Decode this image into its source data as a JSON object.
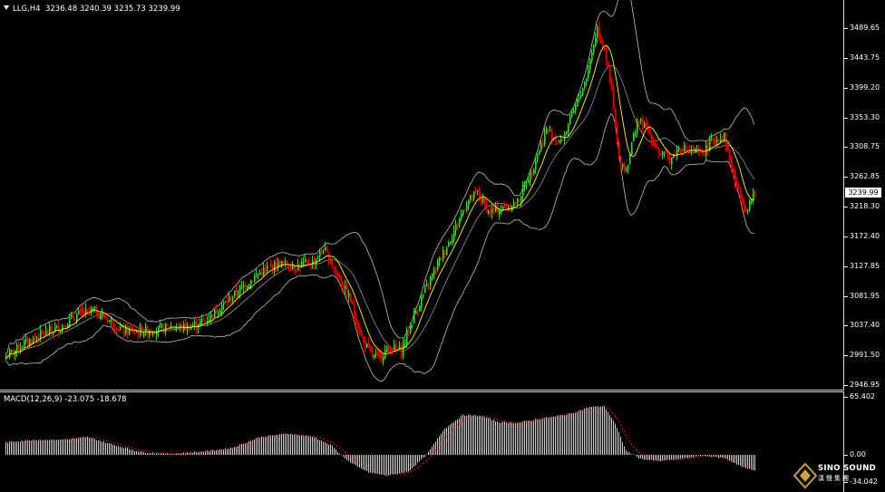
{
  "header": {
    "symbol_timeframe": "LLG,H4",
    "ohlc": "3236.48 3240.39 3235.73 3239.99"
  },
  "macd_header": {
    "label": "MACD(12,26,9) -23.075 -18.678"
  },
  "current_price": "3239.99",
  "logo": {
    "name": "SINO SOUND",
    "sub": "漢聲集團"
  },
  "colors": {
    "background": "#000000",
    "bull_candle": "#3cd23c",
    "bear_candle": "#e00000",
    "moving_average": "#ffff00",
    "bollinger": "#c0c0c0",
    "macd_signal": "#ff2020",
    "macd_hist": "#d0d0d0"
  },
  "price_axis": [
    "3489.65",
    "3443.75",
    "3399.20",
    "3353.30",
    "3308.75",
    "3262.85",
    "3218.30",
    "3172.40",
    "3127.85",
    "3081.95",
    "3037.40",
    "2991.50",
    "2946.95"
  ],
  "macd_axis": [
    "65.402",
    "0.00",
    "-34.042"
  ],
  "chart_data": {
    "type": "candlestick",
    "symbol": "LLG",
    "timeframe": "H4",
    "ylim": [
      2946.95,
      3510
    ],
    "anchors": [
      [
        0,
        2990
      ],
      [
        10,
        3010
      ],
      [
        20,
        3025
      ],
      [
        30,
        3035
      ],
      [
        40,
        3055
      ],
      [
        48,
        3060
      ],
      [
        56,
        3048
      ],
      [
        64,
        3030
      ],
      [
        72,
        3028
      ],
      [
        80,
        3030
      ],
      [
        90,
        3035
      ],
      [
        100,
        3035
      ],
      [
        110,
        3045
      ],
      [
        120,
        3070
      ],
      [
        130,
        3095
      ],
      [
        140,
        3118
      ],
      [
        150,
        3132
      ],
      [
        160,
        3128
      ],
      [
        170,
        3135
      ],
      [
        175,
        3155
      ],
      [
        180,
        3130
      ],
      [
        190,
        3075
      ],
      [
        196,
        3020
      ],
      [
        202,
        2990
      ],
      [
        206,
        2990
      ],
      [
        212,
        3005
      ],
      [
        218,
        3000
      ],
      [
        226,
        3060
      ],
      [
        236,
        3120
      ],
      [
        246,
        3175
      ],
      [
        254,
        3225
      ],
      [
        260,
        3240
      ],
      [
        266,
        3210
      ],
      [
        274,
        3215
      ],
      [
        282,
        3225
      ],
      [
        290,
        3275
      ],
      [
        298,
        3335
      ],
      [
        306,
        3315
      ],
      [
        314,
        3370
      ],
      [
        320,
        3415
      ],
      [
        326,
        3490
      ],
      [
        330,
        3460
      ],
      [
        334,
        3390
      ],
      [
        338,
        3290
      ],
      [
        342,
        3275
      ],
      [
        348,
        3350
      ],
      [
        354,
        3335
      ],
      [
        360,
        3300
      ],
      [
        366,
        3290
      ],
      [
        372,
        3310
      ],
      [
        378,
        3300
      ],
      [
        384,
        3300
      ],
      [
        390,
        3320
      ],
      [
        396,
        3325
      ],
      [
        402,
        3255
      ],
      [
        408,
        3215
      ],
      [
        413,
        3240
      ]
    ],
    "macd_ylim": [
      -34.042,
      65.402
    ],
    "macd_anchors": [
      [
        0,
        14
      ],
      [
        15,
        17
      ],
      [
        30,
        17
      ],
      [
        45,
        20
      ],
      [
        60,
        11
      ],
      [
        75,
        3
      ],
      [
        90,
        1
      ],
      [
        110,
        4
      ],
      [
        125,
        8
      ],
      [
        140,
        20
      ],
      [
        155,
        24
      ],
      [
        170,
        20
      ],
      [
        180,
        10
      ],
      [
        190,
        -10
      ],
      [
        200,
        -22
      ],
      [
        210,
        -26
      ],
      [
        222,
        -21
      ],
      [
        232,
        0
      ],
      [
        242,
        30
      ],
      [
        252,
        45
      ],
      [
        262,
        44
      ],
      [
        272,
        37
      ],
      [
        282,
        36
      ],
      [
        292,
        40
      ],
      [
        302,
        43
      ],
      [
        312,
        47
      ],
      [
        322,
        54
      ],
      [
        330,
        55
      ],
      [
        336,
        35
      ],
      [
        342,
        5
      ],
      [
        350,
        -5
      ],
      [
        360,
        -8
      ],
      [
        372,
        -5
      ],
      [
        384,
        -1
      ],
      [
        396,
        -4
      ],
      [
        408,
        -17
      ],
      [
        413,
        -19
      ]
    ]
  }
}
